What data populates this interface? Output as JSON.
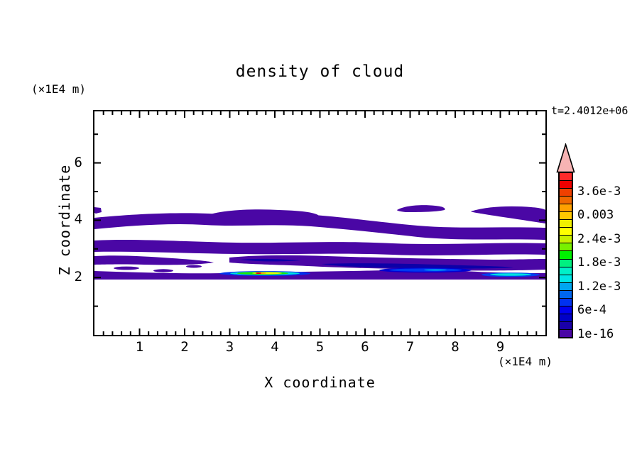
{
  "title": "density of cloud",
  "time_label": "t=2.4012e+06",
  "y_units_label": "(×1E4 m)",
  "x_units_label": "(×1E4 m)",
  "x_axis": {
    "label": "X coordinate",
    "major_values": [
      1,
      2,
      3,
      4,
      5,
      6,
      7,
      8,
      9
    ],
    "tick_labels": [
      "1",
      "2",
      "3",
      "4",
      "5",
      "6",
      "7",
      "8",
      "9"
    ],
    "range": [
      0,
      10
    ],
    "minor_step": 0.2
  },
  "y_axis": {
    "label": "Z coordinate",
    "major_values": [
      2,
      4,
      6
    ],
    "tick_labels": [
      "2",
      "4",
      "6"
    ],
    "minor_values": [
      1,
      3,
      5,
      7
    ],
    "range": [
      0,
      7.8
    ]
  },
  "colorbar": {
    "labels_bottom_to_top": [
      "1e-16",
      "6e-4",
      "1.2e-3",
      "1.8e-3",
      "2.4e-3",
      "0.003",
      "3.6e-3"
    ],
    "segment_colors_bottom_to_top": [
      "#4A07A5",
      "#1A00A8",
      "#0000C8",
      "#0000F0",
      "#0032F0",
      "#0066F0",
      "#00A6F0",
      "#00E6E6",
      "#00F0C8",
      "#00F080",
      "#00F000",
      "#78F000",
      "#C8F000",
      "#FFFF00",
      "#F0F000",
      "#FFC800",
      "#FFA000",
      "#F06800",
      "#F04000",
      "#F00000",
      "#FF2A2A"
    ],
    "overflow_arrow_color": "#F7B3B3"
  },
  "chart_data": {
    "type": "heatmap",
    "subtype": "filled-contour",
    "title": "density of cloud",
    "xlabel": "X coordinate",
    "ylabel": "Z coordinate",
    "x_units": "(×1E4 m)",
    "y_units": "(×1E4 m)",
    "xlim": [
      0,
      10
    ],
    "ylim": [
      0,
      7.8
    ],
    "time_annotation": "t=2.4012e+06",
    "contour_levels_labeled": [
      "1e-16",
      "6e-4",
      "1.2e-3",
      "1.8e-3",
      "2.4e-3",
      "0.003",
      "3.6e-3"
    ],
    "level_step_per_color": "2e-4",
    "grid": false,
    "legend_position": "right colorbar with overflow arrow",
    "features": [
      {
        "value_band": "1e-16 to 2e-4",
        "color": "#4A07A5",
        "desc": "multiple wavy horizontal cloud bands",
        "z_range": [
          2.0,
          4.6
        ],
        "x_range": [
          0,
          10
        ]
      },
      {
        "value_band": "2e-4 to 6e-4",
        "color": "#0D00A8",
        "desc": "darker navy cores inside lower band",
        "z_range": [
          2.3,
          2.6
        ],
        "x_range": [
          3.2,
          9.3
        ]
      },
      {
        "value_band": "up to ~3.6e-3",
        "color": "red core with yellow/green/cyan/blue halo",
        "desc": "thin intense layer",
        "z": 2.15,
        "x_range": [
          2.8,
          4.8
        ]
      },
      {
        "value_band": "~6e-4 to 1.2e-3",
        "color": "bright blue streak",
        "z": 2.25,
        "x_range": [
          6.3,
          8.4
        ]
      },
      {
        "value_band": "~1.2e-3 to 1.8e-3",
        "color": "cyan streak",
        "z": 2.1,
        "x_range": [
          8.6,
          9.9
        ]
      }
    ]
  }
}
